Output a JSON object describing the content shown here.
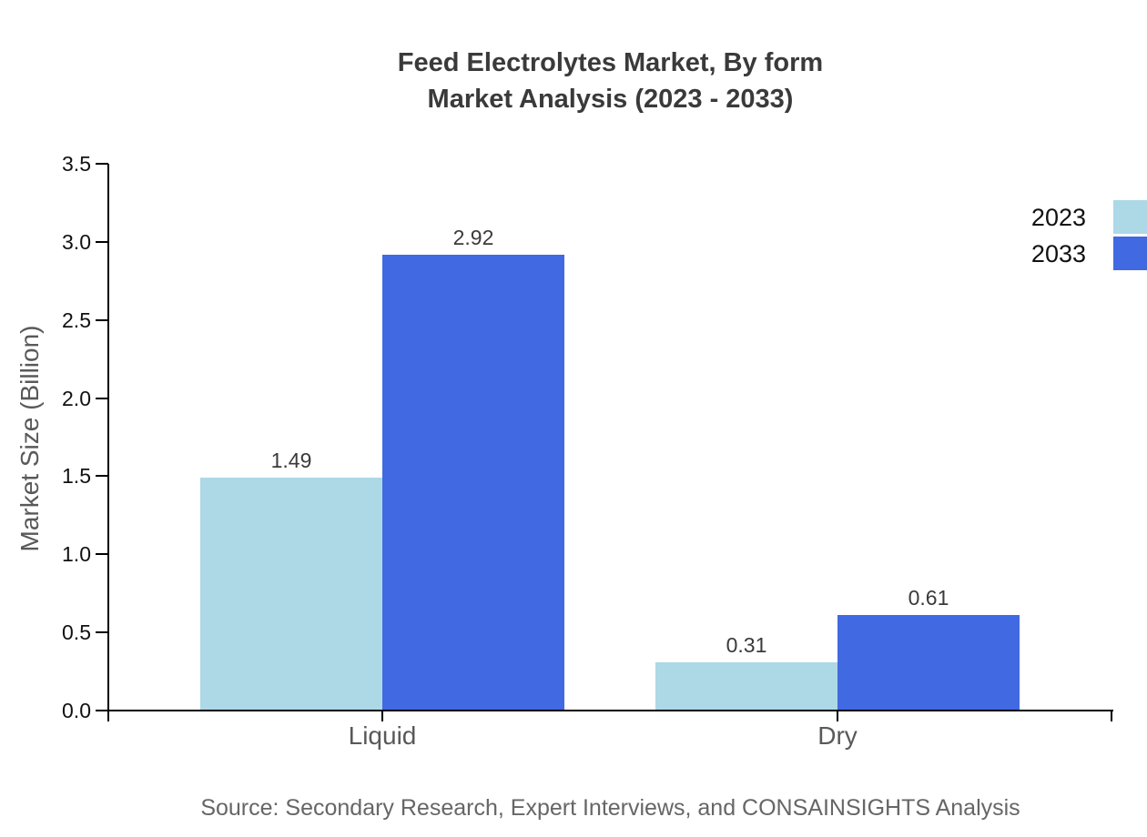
{
  "chart_data": {
    "type": "bar",
    "title": "Feed Electrolytes Market, By form Market Analysis (2023 - 2033)",
    "title_lines": [
      "Feed Electrolytes Market, By form",
      "Market Analysis (2023 - 2033)"
    ],
    "categories": [
      "Liquid",
      "Dry"
    ],
    "series": [
      {
        "name": "2023",
        "color": "#ADD8E6",
        "values": [
          1.49,
          0.31
        ]
      },
      {
        "name": "2033",
        "color": "#4169E1",
        "values": [
          2.92,
          0.61
        ]
      }
    ],
    "xlabel": "",
    "ylabel": "Market Size (Billion)",
    "ylim": [
      0,
      3.5
    ],
    "ytick_labels": [
      "0.0",
      "0.5",
      "1.0",
      "1.5",
      "2.0",
      "2.5",
      "3.0",
      "3.5"
    ],
    "grid": false,
    "legend_position": "top-right-outside",
    "value_labels_shown": true,
    "source_note": "Source: Secondary Research, Expert Interviews, and CONSAINSIGHTS Analysis"
  }
}
